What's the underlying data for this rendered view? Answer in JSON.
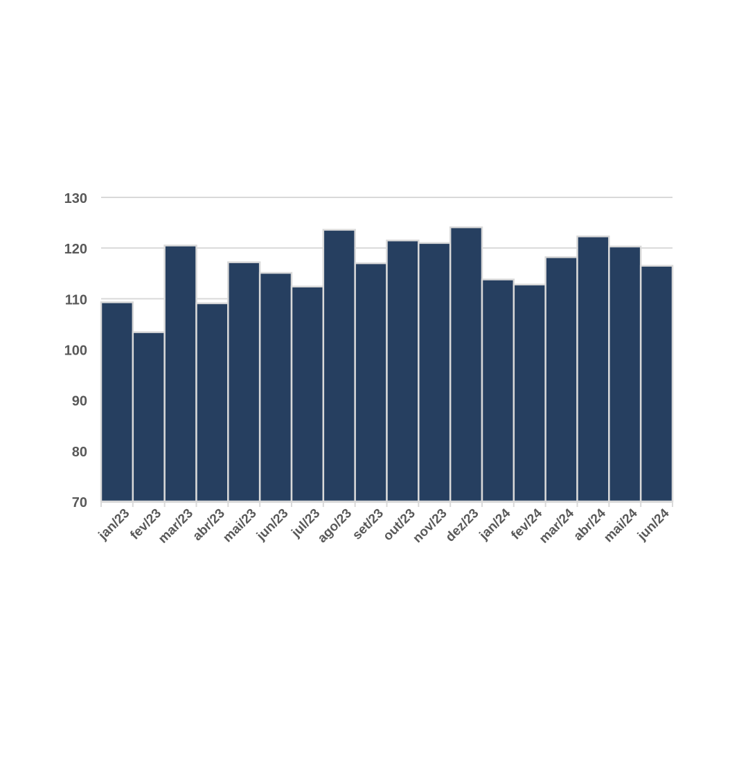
{
  "chart_data": {
    "type": "bar",
    "title": "",
    "xlabel": "",
    "ylabel": "",
    "categories": [
      "jan/23",
      "fev/23",
      "mar/23",
      "abr/23",
      "mai/23",
      "jun/23",
      "jul/23",
      "ago/23",
      "set/23",
      "out/23",
      "nov/23",
      "dez/23",
      "jan/24",
      "fev/24",
      "mar/24",
      "abr/24",
      "mai/24",
      "jun/24"
    ],
    "values": [
      109.3,
      103.4,
      120.5,
      109.1,
      117.2,
      115.1,
      112.4,
      123.6,
      117.0,
      121.5,
      121.0,
      124.1,
      113.8,
      112.8,
      118.2,
      122.3,
      120.3,
      116.5
    ],
    "ylim": [
      70,
      130
    ],
    "yticks": [
      70,
      80,
      90,
      100,
      110,
      120,
      130
    ],
    "grid": true,
    "legend": "none",
    "colors": {
      "bar": "#263f60",
      "bar_edge": "#d9d9d9",
      "grid": "#d9d9d9",
      "tick_text": "#595959",
      "axis": "#d9d9d9"
    }
  }
}
